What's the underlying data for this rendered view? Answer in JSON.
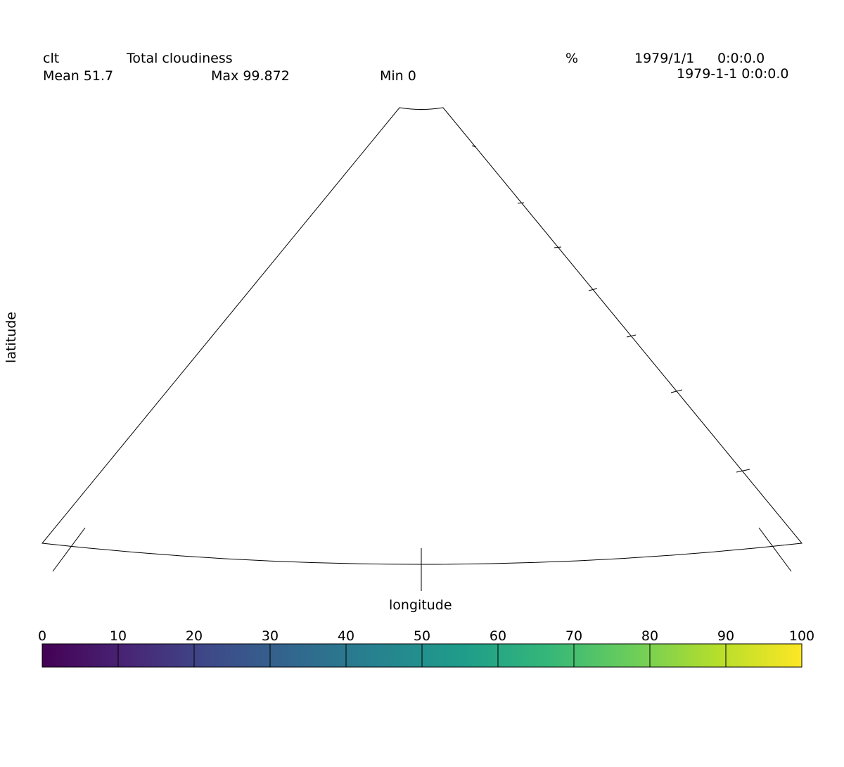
{
  "header": {
    "variable_name": "clt",
    "long_name": "Total cloudiness",
    "units": "%",
    "date": "1979/1/1",
    "time": "0:0:0.0",
    "timestamp": "1979-1-1 0:0:0.0",
    "mean_label": "Mean 51.7",
    "max_label": "Max 99.872",
    "min_label": "Min 0"
  },
  "axes": {
    "xlabel": "longitude",
    "ylabel": "latitude"
  },
  "colorbar": {
    "ticks": [
      "0",
      "10",
      "20",
      "30",
      "40",
      "50",
      "60",
      "70",
      "80",
      "90",
      "100"
    ],
    "colormap": "viridis",
    "range": [
      0,
      100
    ],
    "colors": [
      "#440154",
      "#482576",
      "#3e4a89",
      "#31688e",
      "#26838f",
      "#1f9d8a",
      "#35b779",
      "#6cce5a",
      "#b6de2b",
      "#fde725"
    ]
  }
}
